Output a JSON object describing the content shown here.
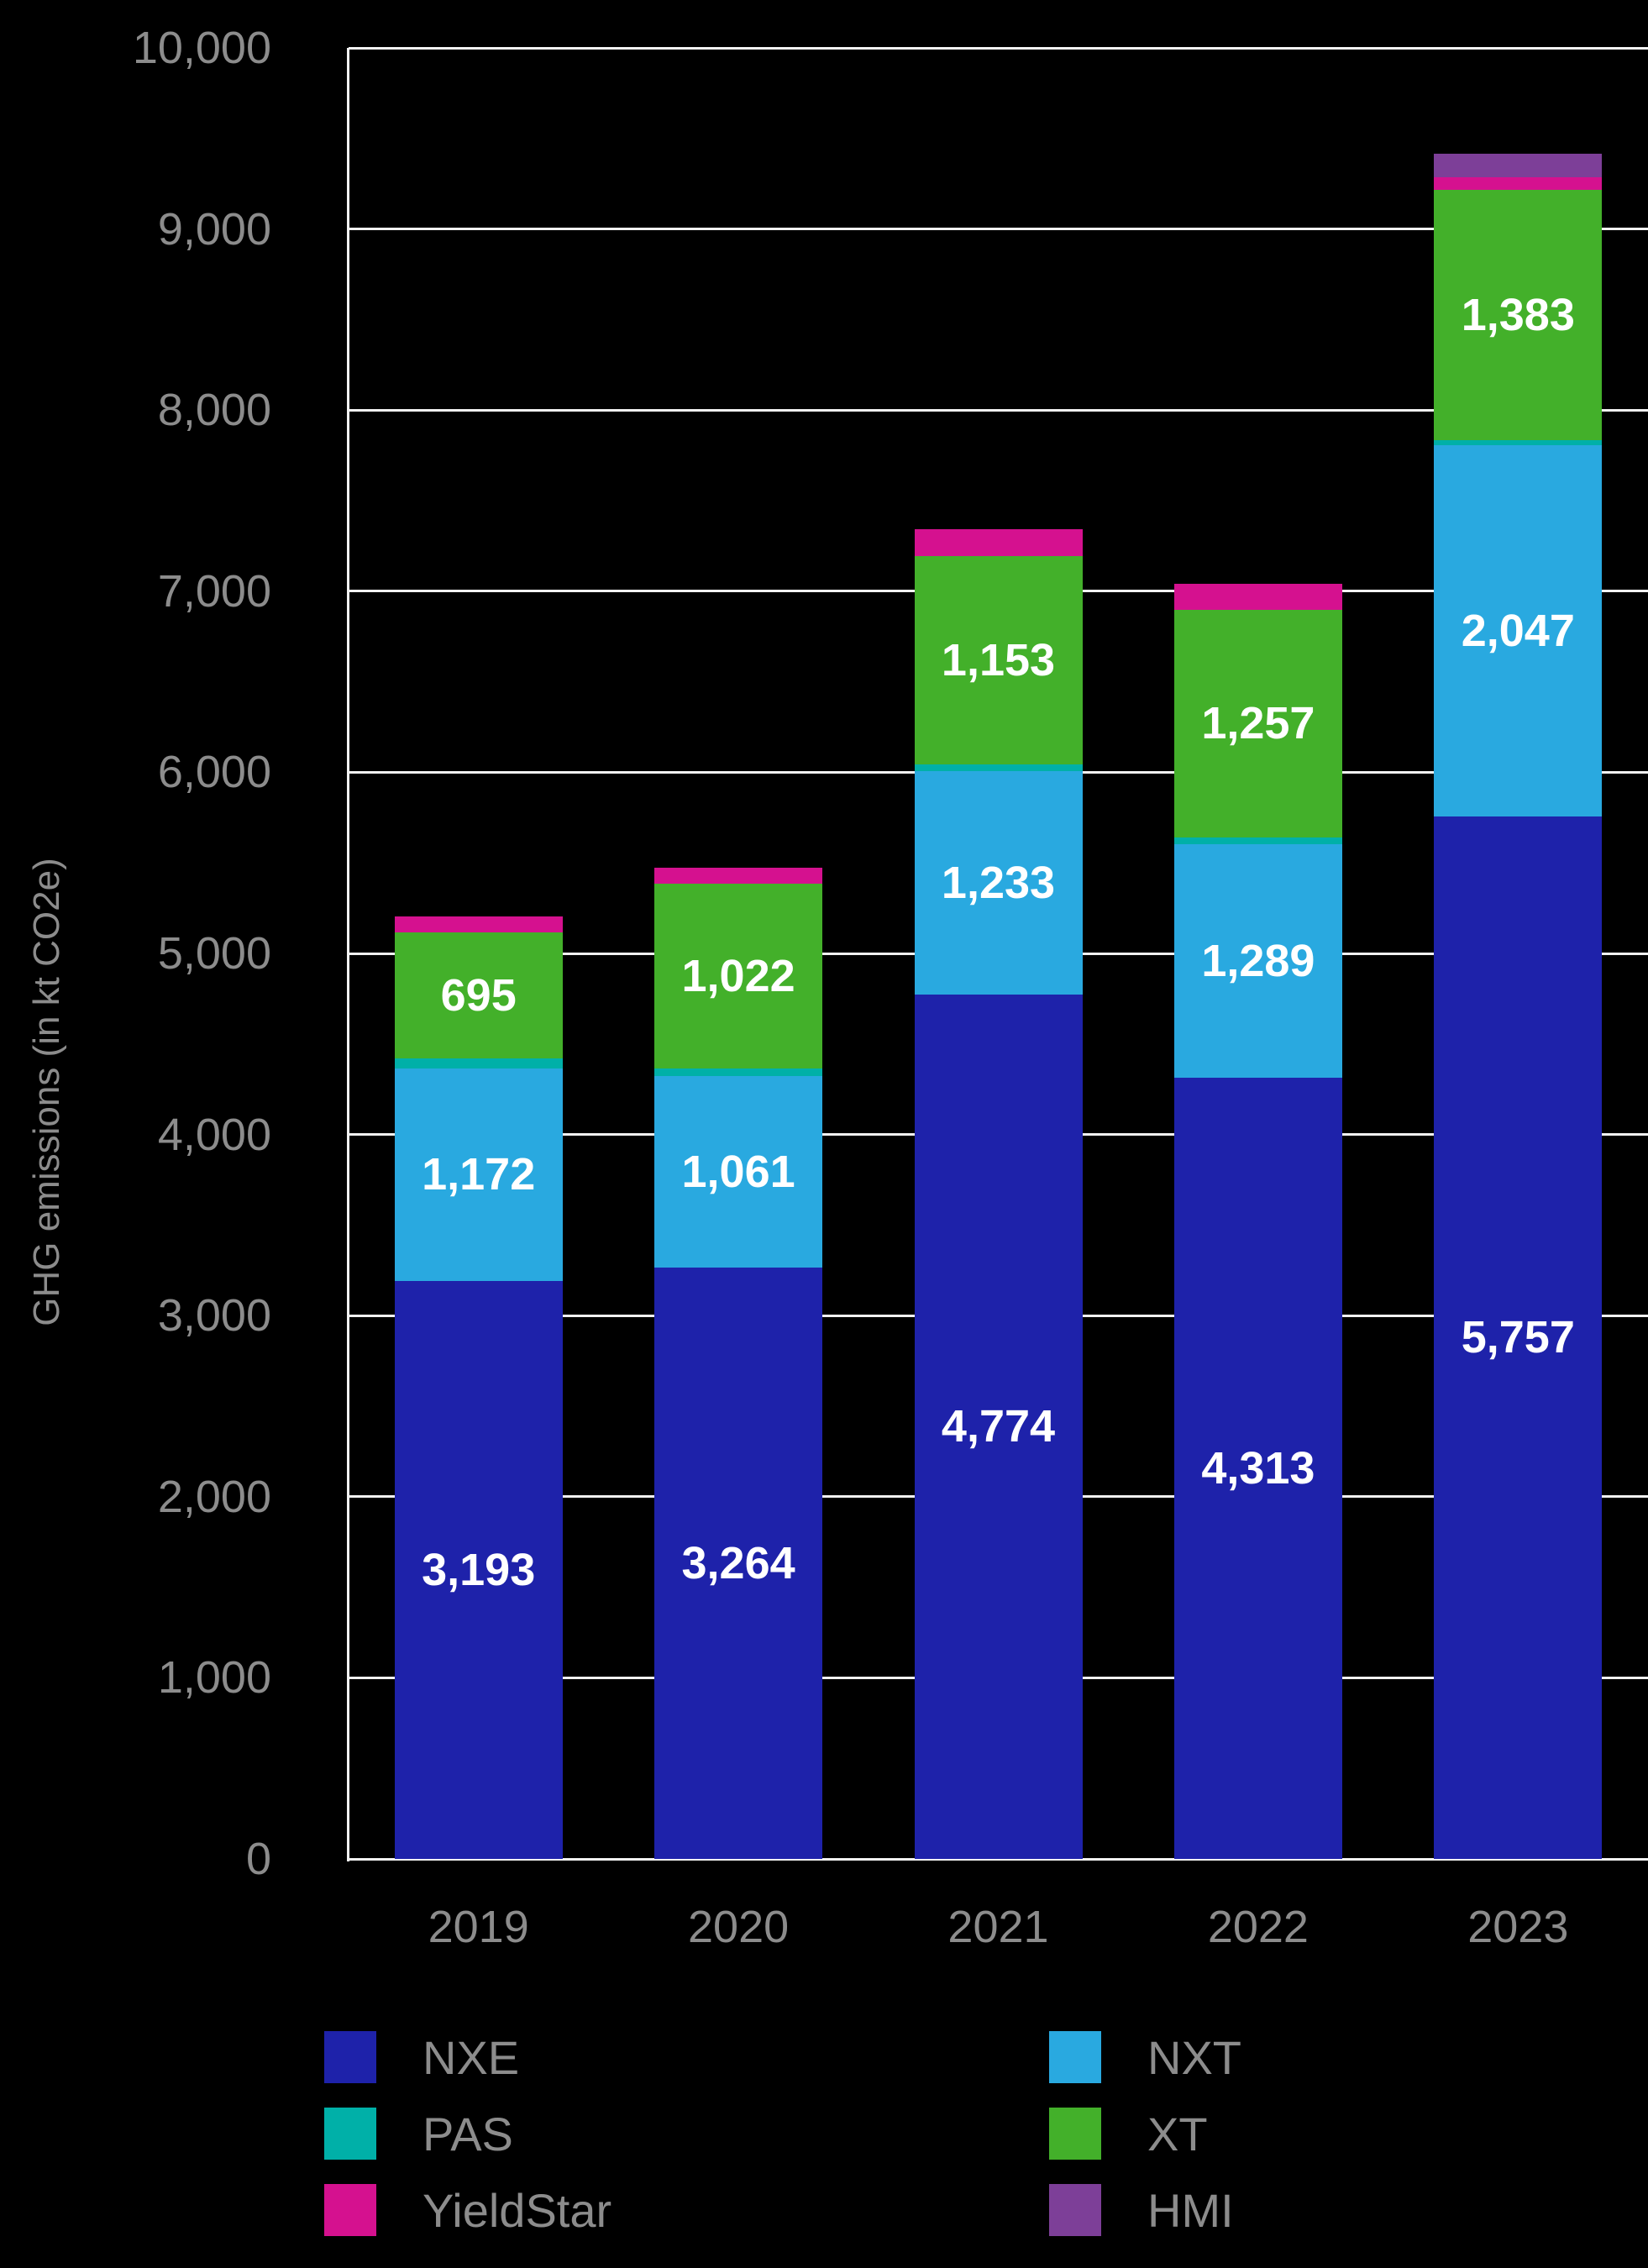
{
  "colors": {
    "background": "#000000",
    "gridline": "#f2f2f2",
    "axis_text": "#8c8c8c",
    "bar_label_text": "#ffffff"
  },
  "chart_data": {
    "type": "bar",
    "subtype": "stacked-vertical",
    "title": "",
    "ylabel": "GHG emissions (in kt CO2e)",
    "xlabel": "",
    "ylim": [
      0,
      10000
    ],
    "ytick_step": 1000,
    "ytick_labels": [
      "0",
      "1,000",
      "2,000",
      "3,000",
      "4,000",
      "5,000",
      "6,000",
      "7,000",
      "8,000",
      "9,000",
      "10,000"
    ],
    "grid": "horizontal",
    "legend_position": "bottom",
    "categories": [
      "2019",
      "2020",
      "2021",
      "2022",
      "2023"
    ],
    "series": [
      {
        "name": "NXE",
        "color": "#1e22aa",
        "values": [
          3193,
          3264,
          4774,
          4313,
          5757
        ],
        "labels": [
          "3,193",
          "3,264",
          "4,774",
          "4,313",
          "5,757"
        ]
      },
      {
        "name": "NXT",
        "color": "#29a9e0",
        "values": [
          1172,
          1061,
          1233,
          1289,
          2047
        ],
        "labels": [
          "1,172",
          "1,061",
          "1,233",
          "1,289",
          "2,047"
        ]
      },
      {
        "name": "PAS",
        "color": "#00b0a8",
        "values": [
          55,
          40,
          35,
          40,
          30
        ],
        "labels": [
          null,
          null,
          null,
          null,
          null
        ],
        "values_estimated": true
      },
      {
        "name": "XT",
        "color": "#43b02a",
        "values": [
          695,
          1022,
          1153,
          1257,
          1383
        ],
        "labels": [
          "695",
          "1,022",
          "1,153",
          "1,257",
          "1,383"
        ]
      },
      {
        "name": "YieldStar",
        "color": "#d5118f",
        "values": [
          90,
          85,
          145,
          140,
          70
        ],
        "labels": [
          null,
          null,
          null,
          null,
          null
        ],
        "values_estimated": true
      },
      {
        "name": "HMI",
        "color": "#7d3f98",
        "values": [
          0,
          0,
          0,
          0,
          130
        ],
        "labels": [
          null,
          null,
          null,
          null,
          null
        ],
        "values_estimated": true
      }
    ]
  },
  "legend": {
    "columns": [
      {
        "items": [
          {
            "label": "NXE",
            "color": "#1e22aa"
          },
          {
            "label": "PAS",
            "color": "#00b0a8"
          },
          {
            "label": "YieldStar",
            "color": "#d5118f"
          }
        ]
      },
      {
        "items": [
          {
            "label": "NXT",
            "color": "#29a9e0"
          },
          {
            "label": "XT",
            "color": "#43b02a"
          },
          {
            "label": "HMI",
            "color": "#7d3f98"
          }
        ]
      }
    ]
  }
}
